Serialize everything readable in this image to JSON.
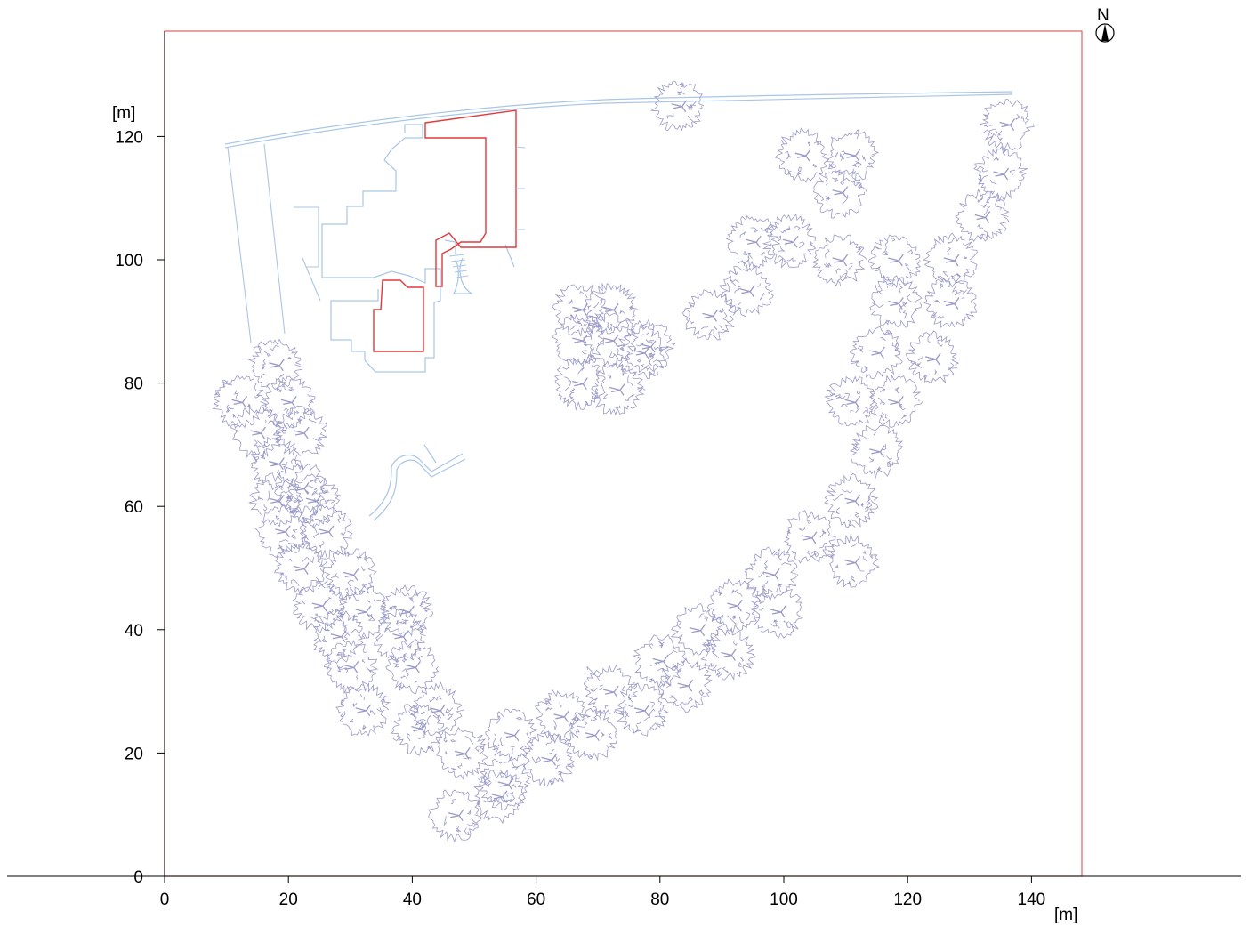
{
  "chart_data": {
    "type": "site-plan",
    "x_unit": "[m]",
    "y_unit": "[m]",
    "xlim": [
      0,
      148
    ],
    "ylim": [
      0,
      137
    ],
    "x_ticks": [
      0,
      20,
      40,
      60,
      80,
      100,
      120,
      140
    ],
    "y_ticks": [
      0,
      20,
      40,
      60,
      80,
      100,
      120
    ],
    "north_label": "N",
    "colors": {
      "boundary": "#e06060",
      "building_outline": "#a9c6e6",
      "highlight_building": "#e03a3a",
      "trees": "#9a9ac8",
      "axis": "#000000"
    },
    "trees": [
      [
        83,
        125
      ],
      [
        103,
        117
      ],
      [
        111,
        117
      ],
      [
        109,
        111
      ],
      [
        95,
        103
      ],
      [
        101,
        103
      ],
      [
        109,
        100
      ],
      [
        136,
        122
      ],
      [
        135,
        114
      ],
      [
        132,
        107
      ],
      [
        94,
        95
      ],
      [
        88,
        91
      ],
      [
        78,
        86
      ],
      [
        67,
        92
      ],
      [
        72,
        92
      ],
      [
        67,
        87
      ],
      [
        72,
        87
      ],
      [
        77,
        85
      ],
      [
        67,
        80
      ],
      [
        73,
        79
      ],
      [
        118,
        100
      ],
      [
        127,
        100
      ],
      [
        118,
        93
      ],
      [
        127,
        93
      ],
      [
        115,
        85
      ],
      [
        124,
        84
      ],
      [
        111,
        77
      ],
      [
        118,
        77
      ],
      [
        115,
        69
      ],
      [
        111,
        61
      ],
      [
        104,
        55
      ],
      [
        111,
        51
      ],
      [
        18,
        83
      ],
      [
        12,
        77
      ],
      [
        20,
        77
      ],
      [
        15,
        72
      ],
      [
        22,
        72
      ],
      [
        18,
        67
      ],
      [
        22,
        63
      ],
      [
        18,
        61
      ],
      [
        24,
        61
      ],
      [
        19,
        56
      ],
      [
        26,
        56
      ],
      [
        22,
        50
      ],
      [
        30,
        49
      ],
      [
        25,
        44
      ],
      [
        32,
        43
      ],
      [
        39,
        43
      ],
      [
        28,
        39
      ],
      [
        38,
        39
      ],
      [
        30,
        34
      ],
      [
        40,
        34
      ],
      [
        32,
        27
      ],
      [
        44,
        27
      ],
      [
        41,
        24
      ],
      [
        48,
        20
      ],
      [
        56,
        23
      ],
      [
        64,
        26
      ],
      [
        72,
        30
      ],
      [
        80,
        35
      ],
      [
        86,
        40
      ],
      [
        92,
        44
      ],
      [
        98,
        49
      ],
      [
        55,
        15
      ],
      [
        62,
        19
      ],
      [
        69,
        23
      ],
      [
        77,
        27
      ],
      [
        84,
        31
      ],
      [
        91,
        36
      ],
      [
        99,
        43
      ],
      [
        47,
        10
      ],
      [
        54,
        13
      ]
    ]
  }
}
